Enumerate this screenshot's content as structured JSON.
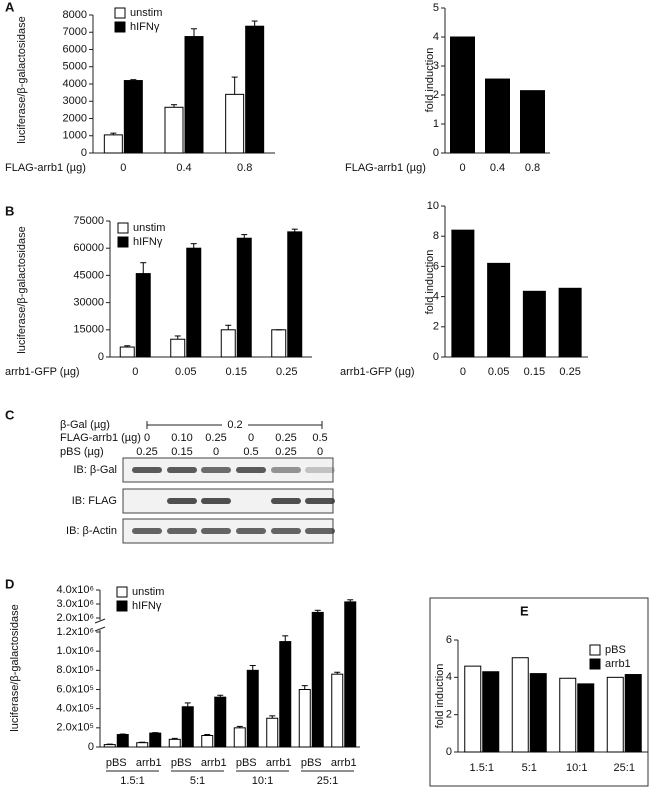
{
  "chart_data": [
    {
      "type": "bar",
      "label": "A",
      "y_label": "luciferase/β-galactosidase",
      "x_label": "FLAG-arrb1 (µg)",
      "categories": [
        "0",
        "0.4",
        "0.8"
      ],
      "series": [
        {
          "name": "unstim",
          "color": "#ffffff",
          "values": [
            1050,
            2650,
            3400
          ],
          "errors": [
            100,
            150,
            1000
          ]
        },
        {
          "name": "hIFNγ",
          "color": "#000000",
          "values": [
            4200,
            6750,
            7350
          ],
          "errors": [
            50,
            450,
            300
          ]
        }
      ],
      "ylim": [
        0,
        8000
      ],
      "yticks": [
        0,
        1000,
        2000,
        3000,
        4000,
        5000,
        6000,
        7000,
        8000
      ]
    },
    {
      "type": "bar",
      "y_label": "fold induction",
      "x_label": "FLAG-arrb1 (µg)",
      "categories": [
        "0",
        "0.4",
        "0.8"
      ],
      "values": [
        4.0,
        2.55,
        2.15
      ],
      "color": "#000000",
      "ylim": [
        0,
        5
      ],
      "yticks": [
        0,
        1,
        2,
        3,
        4,
        5
      ]
    },
    {
      "type": "bar",
      "label": "B",
      "y_label": "luciferase/β-galactosidase",
      "x_label": "arrb1-GFP (µg)",
      "categories": [
        "0",
        "0.05",
        "0.15",
        "0.25"
      ],
      "series": [
        {
          "name": "unstim",
          "color": "#ffffff",
          "values": [
            5500,
            9800,
            15000,
            15000
          ],
          "errors": [
            700,
            1800,
            2500,
            0
          ]
        },
        {
          "name": "hIFNγ",
          "color": "#000000",
          "values": [
            46000,
            60000,
            65500,
            69000
          ],
          "errors": [
            6000,
            2500,
            2000,
            1500
          ]
        }
      ],
      "ylim": [
        0,
        75000
      ],
      "yticks": [
        0,
        15000,
        30000,
        45000,
        60000,
        75000
      ]
    },
    {
      "type": "bar",
      "y_label": "fold induction",
      "x_label": "arrb1-GFP (µg)",
      "categories": [
        "0",
        "0.05",
        "0.15",
        "0.25"
      ],
      "values": [
        8.4,
        6.2,
        4.35,
        4.55
      ],
      "color": "#000000",
      "ylim": [
        0,
        10
      ],
      "yticks": [
        0,
        2,
        4,
        6,
        8,
        10
      ]
    },
    {
      "type": "bar",
      "label": "D",
      "y_label": "luciferase/β-galactosidase",
      "categories": [
        "pBS",
        "arrb1",
        "pBS",
        "arrb1",
        "pBS",
        "arrb1",
        "pBS",
        "arrb1"
      ],
      "groups": [
        "1.5:1",
        "5:1",
        "10:1",
        "25:1"
      ],
      "series": [
        {
          "name": "unstim",
          "color": "#ffffff",
          "values": [
            25000,
            45000,
            80000,
            120000,
            200000,
            300000,
            600000,
            760000
          ],
          "errors": [
            5000,
            5000,
            10000,
            10000,
            15000,
            25000,
            40000,
            20000
          ]
        },
        {
          "name": "hIFNγ",
          "color": "#000000",
          "values": [
            130000,
            145000,
            420000,
            520000,
            800000,
            1100000,
            2400000,
            3150000
          ],
          "errors": [
            5000,
            5000,
            40000,
            20000,
            50000,
            60000,
            150000,
            150000
          ]
        }
      ],
      "ylim": [
        0,
        4000000
      ],
      "axis_break": [
        1200000,
        2000000
      ],
      "yticks": [
        0,
        {
          "value": 200000,
          "label": "2.0x10⁵"
        },
        {
          "value": 400000,
          "label": "4.0x10⁵"
        },
        {
          "value": 600000,
          "label": "6.0x10⁵"
        },
        {
          "value": 800000,
          "label": "8.0x10⁵"
        },
        {
          "value": 1000000,
          "label": "1.0x10⁶"
        },
        {
          "value": 1200000,
          "label": "1.2x10⁶"
        },
        {
          "value": 2000000,
          "label": "2.0x10⁶"
        },
        {
          "value": 3000000,
          "label": "3.0x10⁶"
        },
        {
          "value": 4000000,
          "label": "4.0x10⁶"
        }
      ]
    },
    {
      "type": "bar",
      "label": "E",
      "y_label": "fold induction",
      "categories": [
        "1.5:1",
        "5:1",
        "10:1",
        "25:1"
      ],
      "series": [
        {
          "name": "pBS",
          "color": "#ffffff",
          "values": [
            4.6,
            5.05,
            3.95,
            4.0
          ]
        },
        {
          "name": "arrb1",
          "color": "#000000",
          "values": [
            4.3,
            4.2,
            3.65,
            4.15
          ]
        }
      ],
      "ylim": [
        0,
        6
      ],
      "yticks": [
        0,
        2,
        4,
        6
      ]
    }
  ],
  "blot": {
    "label": "C",
    "rows": [
      "β-Gal (µg)",
      "FLAG-arrb1 (µg)",
      "pBS (µg)"
    ],
    "beta_gal": "0.2",
    "flag_arrb1": [
      "0",
      "0.10",
      "0.25",
      "0",
      "0.25",
      "0.5"
    ],
    "pbs": [
      "0.25",
      "0.15",
      "0",
      "0.5",
      "0.25",
      "0"
    ],
    "blots": [
      "IB: β-Gal",
      "IB: FLAG",
      "IB: β-Actin"
    ]
  }
}
